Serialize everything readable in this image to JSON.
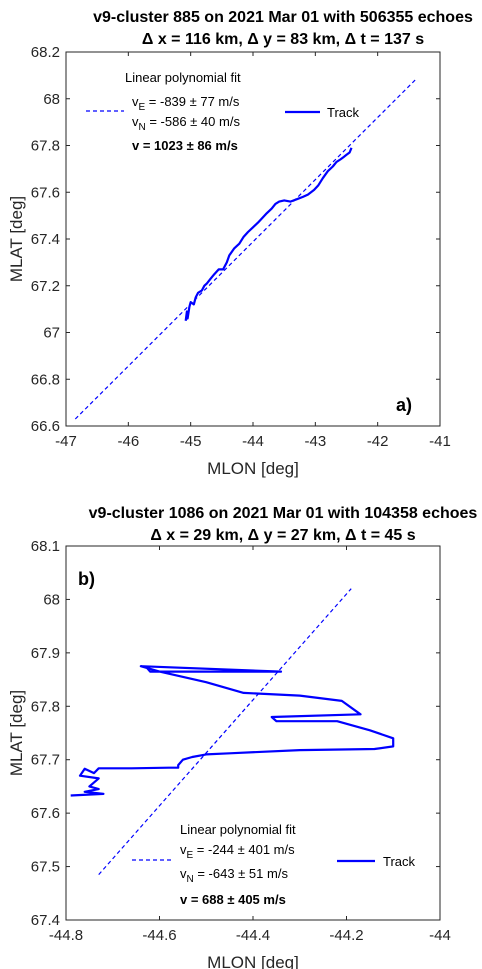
{
  "chart_data": [
    {
      "type": "line",
      "title": "v9-cluster 885 on 2021 Mar 01 with 506355  echoes",
      "subtitle": "Δ x =  116 km, Δ y =  83 km, Δ t =  137 s",
      "xlabel": "MLON [deg]",
      "ylabel": "MLAT [deg]",
      "xlim": [
        -47,
        -41
      ],
      "ylim": [
        66.6,
        68.2
      ],
      "xticks": [
        "-47",
        "-46",
        "-45",
        "-44",
        "-43",
        "-42",
        "-41"
      ],
      "yticks": [
        "66.6",
        "66.8",
        "67",
        "67.2",
        "67.4",
        "67.6",
        "67.8",
        "68",
        "68.2"
      ],
      "panel_label": "a)",
      "legend": {
        "fit_title": "Linear polynomial fit",
        "ve_label": "v",
        "ve_sub": "E",
        "ve_value": " = -839 ± 77 m/s",
        "vn_label": "v",
        "vn_sub": "N",
        "vn_value": " = -586 ± 40 m/s",
        "v_total": "v =  1023 ± 86 m/s",
        "track_label": "Track"
      },
      "series": [
        {
          "name": "Linear polynomial fit",
          "style": "dashed",
          "color": "#0000ff",
          "x": [
            -46.85,
            -41.4
          ],
          "y": [
            66.63,
            68.08
          ]
        },
        {
          "name": "Track",
          "style": "solid",
          "color": "#0000ff",
          "x": [
            -45.08,
            -45.06,
            -45.05,
            -45.02,
            -45.0,
            -44.95,
            -44.92,
            -44.88,
            -44.82,
            -44.78,
            -44.74,
            -44.68,
            -44.62,
            -44.55,
            -44.48,
            -44.42,
            -44.38,
            -44.3,
            -44.22,
            -44.15,
            -44.08,
            -44.0,
            -43.92,
            -43.85,
            -43.78,
            -43.7,
            -43.64,
            -43.58,
            -43.5,
            -43.4,
            -43.3,
            -43.2,
            -43.12,
            -43.02,
            -42.95,
            -42.88,
            -42.8,
            -42.72,
            -42.66,
            -42.6,
            -42.55,
            -42.5,
            -42.45,
            -42.42
          ],
          "y": [
            67.05,
            67.09,
            67.06,
            67.11,
            67.13,
            67.12,
            67.15,
            67.17,
            67.18,
            67.2,
            67.21,
            67.23,
            67.25,
            67.27,
            67.27,
            67.3,
            67.33,
            67.36,
            67.38,
            67.41,
            67.43,
            67.45,
            67.47,
            67.49,
            67.51,
            67.53,
            67.55,
            67.56,
            67.565,
            67.56,
            67.57,
            67.58,
            67.59,
            67.61,
            67.63,
            67.66,
            67.69,
            67.71,
            67.73,
            67.74,
            67.75,
            67.76,
            67.77,
            67.79
          ]
        }
      ]
    },
    {
      "type": "line",
      "title": "v9-cluster 1086 on 2021 Mar 01 with 104358  echoes",
      "subtitle": "Δ x =  29 km, Δ y =  27 km, Δ t =  45 s",
      "xlabel": "MLON [deg]",
      "ylabel": "MLAT [deg]",
      "xlim": [
        -44.8,
        -44
      ],
      "ylim": [
        67.4,
        68.1
      ],
      "xticks": [
        "-44.8",
        "-44.6",
        "-44.4",
        "-44.2",
        "-44"
      ],
      "yticks": [
        "67.4",
        "67.5",
        "67.6",
        "67.7",
        "67.8",
        "67.9",
        "68",
        "68.1"
      ],
      "panel_label": "b)",
      "legend": {
        "fit_title": "Linear polynomial fit",
        "ve_label": "v",
        "ve_sub": "E",
        "ve_value": " = -244 ± 401 m/s",
        "vn_label": "v",
        "vn_sub": "N",
        "vn_value": " = -643 ± 51 m/s",
        "v_total": "v =  688 ± 405 m/s",
        "track_label": "Track"
      },
      "series": [
        {
          "name": "Linear polynomial fit",
          "style": "dashed",
          "color": "#0000ff",
          "x": [
            -44.73,
            -44.19
          ],
          "y": [
            67.485,
            68.02
          ]
        },
        {
          "name": "Track",
          "style": "solid",
          "color": "#0000ff",
          "x": [
            -44.63,
            -44.62,
            -44.52,
            -44.34,
            -44.64,
            -44.6,
            -44.5,
            -44.42,
            -44.3,
            -44.21,
            -44.17,
            -44.36,
            -44.35,
            -44.22,
            -44.15,
            -44.1,
            -44.1,
            -44.14,
            -44.3,
            -44.45,
            -44.5,
            -44.53,
            -44.55,
            -44.56,
            -44.56,
            -44.58,
            -44.66,
            -44.73,
            -44.74,
            -44.76,
            -44.77,
            -44.73,
            -44.75,
            -44.73,
            -44.76,
            -44.72,
            -44.79
          ],
          "y": [
            67.875,
            67.865,
            67.865,
            67.865,
            67.875,
            67.865,
            67.845,
            67.825,
            67.82,
            67.81,
            67.785,
            67.78,
            67.772,
            67.772,
            67.755,
            67.74,
            67.725,
            67.72,
            67.718,
            67.712,
            67.71,
            67.705,
            67.7,
            67.69,
            67.685,
            67.685,
            67.684,
            67.684,
            67.675,
            67.683,
            67.67,
            67.665,
            67.65,
            67.645,
            67.64,
            67.636,
            67.633
          ]
        }
      ]
    }
  ]
}
